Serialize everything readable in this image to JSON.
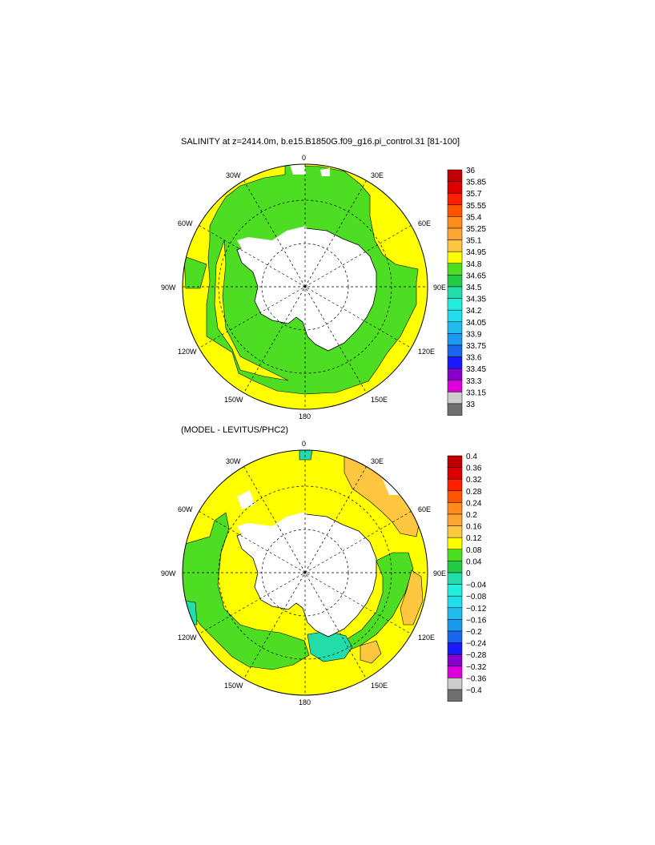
{
  "panels": [
    {
      "title": "SALINITY at z=2414.0m, b.e15.B1850G.f09_g16.pi_control.31 [81-100]",
      "lon_labels": {
        "n": "0",
        "ne30": "30E",
        "ne60": "60E",
        "e": "90E",
        "se120": "120E",
        "se150": "150E",
        "s": "180",
        "sw150": "150W",
        "sw120": "120W",
        "w": "90W",
        "nw60": "60W",
        "nw30": "30W"
      },
      "colorbar": {
        "labels": [
          "36",
          "35.85",
          "35.7",
          "35.55",
          "35.4",
          "35.25",
          "35.1",
          "34.95",
          "34.8",
          "34.65",
          "34.5",
          "34.35",
          "34.2",
          "34.05",
          "33.9",
          "33.75",
          "33.6",
          "33.45",
          "33.3",
          "33.15",
          "33"
        ]
      }
    },
    {
      "title": "(MODEL - LEVITUS/PHC2)",
      "lon_labels": {
        "n": "0",
        "ne30": "30E",
        "ne60": "60E",
        "e": "90E",
        "se120": "120E",
        "se150": "150E",
        "s": "180",
        "sw150": "150W",
        "sw120": "120W",
        "w": "90W",
        "nw60": "60W",
        "nw30": "30W"
      },
      "colorbar": {
        "labels": [
          "0.4",
          "0.36",
          "0.32",
          "0.28",
          "0.24",
          "0.2",
          "0.16",
          "0.12",
          "0.08",
          "0.04",
          "0",
          "−0.04",
          "−0.08",
          "−0.12",
          "−0.16",
          "−0.2",
          "−0.24",
          "−0.28",
          "−0.32",
          "−0.36",
          "−0.4"
        ]
      }
    }
  ],
  "colors": [
    "#c00000",
    "#dd0000",
    "#ff2000",
    "#ff5500",
    "#ff8c1a",
    "#ffa533",
    "#ffc640",
    "#ffff00",
    "#4ddd22",
    "#22cc44",
    "#22ddaa",
    "#22eedd",
    "#22ddee",
    "#22bbee",
    "#1a99ee",
    "#1a66ee",
    "#1a1aff",
    "#8800cc",
    "#dd00dd",
    "#cccccc",
    "#707070"
  ]
}
